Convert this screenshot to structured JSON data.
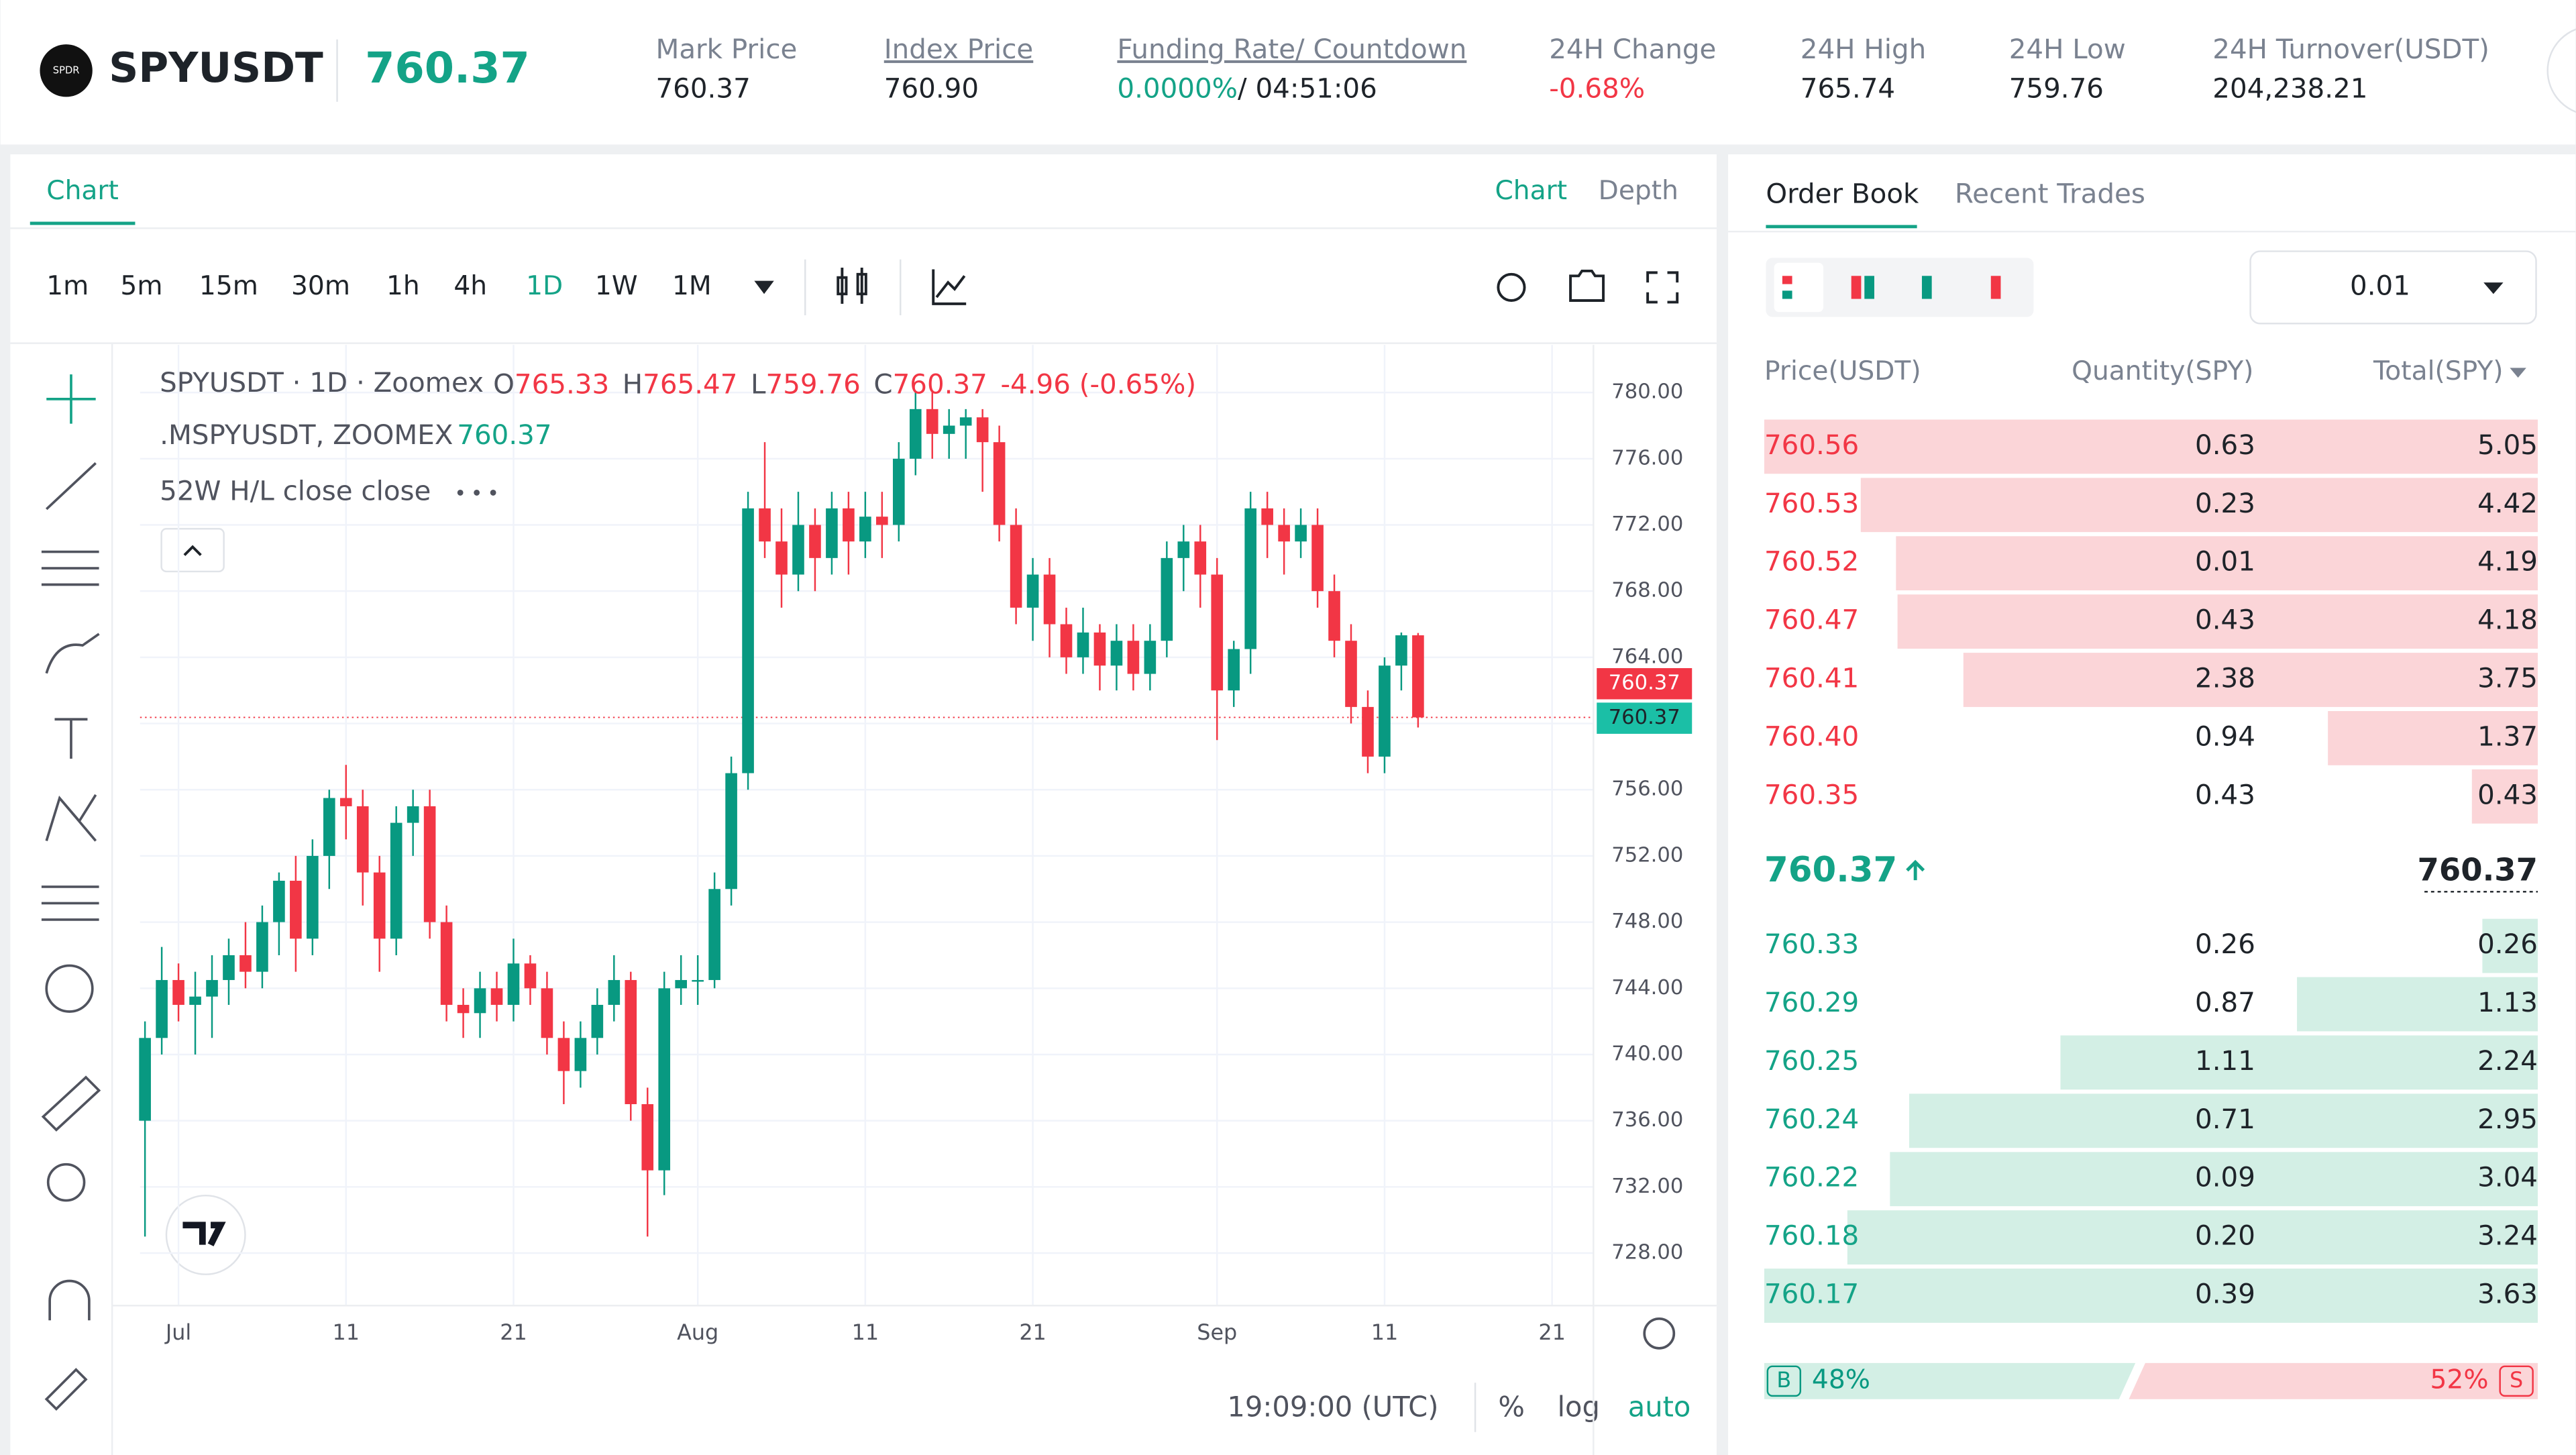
{
  "header": {
    "icon": "SPDR",
    "symbol": "SPYUSDT",
    "last_price": "760.37",
    "stats": [
      {
        "label": "Mark Price",
        "value": "760.37"
      },
      {
        "label": "Index Price",
        "value": "760.90"
      },
      {
        "label": "Funding Rate/ Countdown",
        "value": "0.0000%",
        "extra": "/ 04:51:06"
      },
      {
        "label": "24H Change",
        "value": "-0.68%"
      },
      {
        "label": "24H High",
        "value": "765.74"
      },
      {
        "label": "24H Low",
        "value": "759.76"
      },
      {
        "label": "24H Turnover(USDT)",
        "value": "204,238.21"
      }
    ]
  },
  "chart_panel": {
    "tab": "Chart",
    "view_tabs": [
      "Chart",
      "Depth"
    ],
    "intervals": [
      "1m",
      "5m",
      "15m",
      "30m",
      "1h",
      "4h",
      "1D",
      "1W",
      "1M"
    ],
    "time": "19:09:00 (UTC)",
    "scale_buttons": [
      "%",
      "log",
      "auto"
    ]
  },
  "chart_data": {
    "type": "candlestick",
    "legend_symbol": "SPYUSDT · 1D · Zoomex",
    "ohlc_labels": [
      "O",
      "H",
      "L",
      "C"
    ],
    "change": "-4.96 (-0.65%)",
    "mark_line": ".MSPYUSDT, ZOOMEX",
    "mark_value": "760.37",
    "indicator": "52W H/L close close",
    "last_label": "760.37",
    "mark_label": "760.37",
    "up_color": "#089981",
    "down_color": "#f23645",
    "open": [
      736,
      741,
      744.5,
      743,
      743.5,
      744.5,
      746,
      745,
      748,
      750.5,
      747,
      752,
      755.5,
      755,
      751,
      747,
      754,
      755,
      748,
      743,
      742.5,
      744,
      743,
      745.5,
      744,
      741,
      739,
      741,
      743,
      744.5,
      737,
      733,
      744,
      744.5,
      744.5,
      750,
      757,
      773,
      771,
      769,
      772,
      770,
      773,
      771,
      772.5,
      772,
      776,
      779,
      777.5,
      778,
      778.5,
      777,
      772,
      767,
      769,
      766,
      764,
      765.5,
      763.5,
      765,
      763,
      765,
      770,
      771,
      769,
      762,
      764.5,
      773,
      772,
      771,
      772,
      768,
      765,
      761,
      758,
      763.5,
      765.33
    ],
    "high": [
      742,
      746.5,
      745.5,
      745,
      746,
      747,
      748,
      749,
      751,
      752,
      753,
      756,
      757.5,
      756,
      752,
      755,
      756,
      756,
      749,
      744,
      745,
      745,
      747,
      746,
      745,
      742,
      742,
      744,
      746,
      745,
      738,
      745,
      746,
      746,
      751,
      758,
      774,
      777,
      773,
      774,
      773,
      774,
      774,
      774,
      774,
      777,
      780,
      780,
      779,
      779,
      779,
      778,
      773,
      770,
      770,
      767,
      767,
      766,
      766,
      766,
      766,
      771,
      772,
      772,
      770,
      765,
      774,
      774,
      773,
      773,
      773,
      769,
      766,
      762,
      764,
      765.5,
      765.47
    ],
    "low": [
      729,
      740,
      742,
      740,
      741,
      743,
      744,
      744,
      746,
      745,
      746,
      750,
      753,
      749,
      745,
      746,
      752,
      747,
      742,
      741,
      741,
      742,
      742,
      743,
      740,
      737,
      738,
      740,
      742,
      736,
      729,
      731.5,
      743,
      743,
      744,
      749,
      756,
      770,
      767,
      768,
      768,
      769,
      769,
      770,
      770,
      771,
      775,
      776,
      776,
      776,
      774,
      771,
      766,
      765,
      764,
      763,
      763,
      762,
      762,
      762,
      762,
      764,
      768,
      767,
      759,
      761,
      763,
      770,
      769,
      770,
      767,
      764,
      760,
      757,
      757,
      762,
      759.76
    ],
    "close": [
      741,
      744.5,
      743,
      743.5,
      744.5,
      746,
      745,
      748,
      750.5,
      747,
      752,
      755.5,
      755,
      751,
      747,
      754,
      755,
      748,
      743,
      742.5,
      744,
      743,
      745.5,
      744,
      741,
      739,
      741,
      743,
      744.5,
      737,
      733,
      744,
      744.5,
      744.5,
      750,
      757,
      773,
      771,
      769,
      772,
      770,
      773,
      771,
      772.5,
      772,
      776,
      779,
      777.5,
      778,
      778.5,
      777,
      772,
      767,
      769,
      766,
      764,
      765.5,
      763.5,
      765,
      763,
      765,
      770,
      771,
      769,
      762,
      764.5,
      773,
      772,
      771,
      772,
      768,
      765,
      761,
      758,
      763.5,
      765.33,
      760.37
    ],
    "ylim": [
      724.83,
      782.88
    ],
    "yticks": [
      {
        "value": 728,
        "label": "728.00"
      },
      {
        "value": 732,
        "label": "732.00"
      },
      {
        "value": 736,
        "label": "736.00"
      },
      {
        "value": 740,
        "label": "740.00"
      },
      {
        "value": 744,
        "label": "744.00"
      },
      {
        "value": 748,
        "label": "748.00"
      },
      {
        "value": 752,
        "label": "752.00"
      },
      {
        "value": 756,
        "label": "756.00"
      },
      {
        "value": 760,
        "label": "760.00"
      },
      {
        "value": 764,
        "label": "764.00"
      },
      {
        "value": 768,
        "label": "768.00"
      },
      {
        "value": 772,
        "label": "772.00"
      },
      {
        "value": 776,
        "label": "776.00"
      },
      {
        "value": 780,
        "label": "780.00"
      }
    ],
    "xlabels": [
      "Jul",
      "11",
      "21",
      "Aug",
      "11",
      "21",
      "Sep",
      "11",
      "21"
    ],
    "grid": true
  },
  "order_book": {
    "tabs": [
      "Order Book",
      "Recent Trades"
    ],
    "precision": "0.01",
    "columns": [
      "Price(USDT)",
      "Quantity(SPY)",
      "Total(SPY)"
    ],
    "asks": [
      {
        "price": "760.56",
        "qty": "0.63",
        "total": 5.05
      },
      {
        "price": "760.53",
        "qty": "0.23",
        "total": 4.42
      },
      {
        "price": "760.52",
        "qty": "0.01",
        "total": 4.19
      },
      {
        "price": "760.47",
        "qty": "0.43",
        "total": 4.18
      },
      {
        "price": "760.41",
        "qty": "2.38",
        "total": 3.75
      },
      {
        "price": "760.40",
        "qty": "0.94",
        "total": 1.37
      },
      {
        "price": "760.35",
        "qty": "0.43",
        "total": 0.43
      }
    ],
    "mid_price": "760.37",
    "mid_mark": "760.37",
    "bids": [
      {
        "price": "760.33",
        "qty": "0.26",
        "total": 0.26
      },
      {
        "price": "760.29",
        "qty": "0.87",
        "total": 1.13
      },
      {
        "price": "760.25",
        "qty": "1.11",
        "total": 2.24
      },
      {
        "price": "760.24",
        "qty": "0.71",
        "total": 2.95
      },
      {
        "price": "760.22",
        "qty": "0.09",
        "total": 3.04
      },
      {
        "price": "760.18",
        "qty": "0.20",
        "total": 3.24
      },
      {
        "price": "760.17",
        "qty": "0.39",
        "total": 3.63
      }
    ],
    "buy_letter": "B",
    "buy_ratio": "48%",
    "sell_ratio": "52%",
    "sell_letter": "S"
  }
}
